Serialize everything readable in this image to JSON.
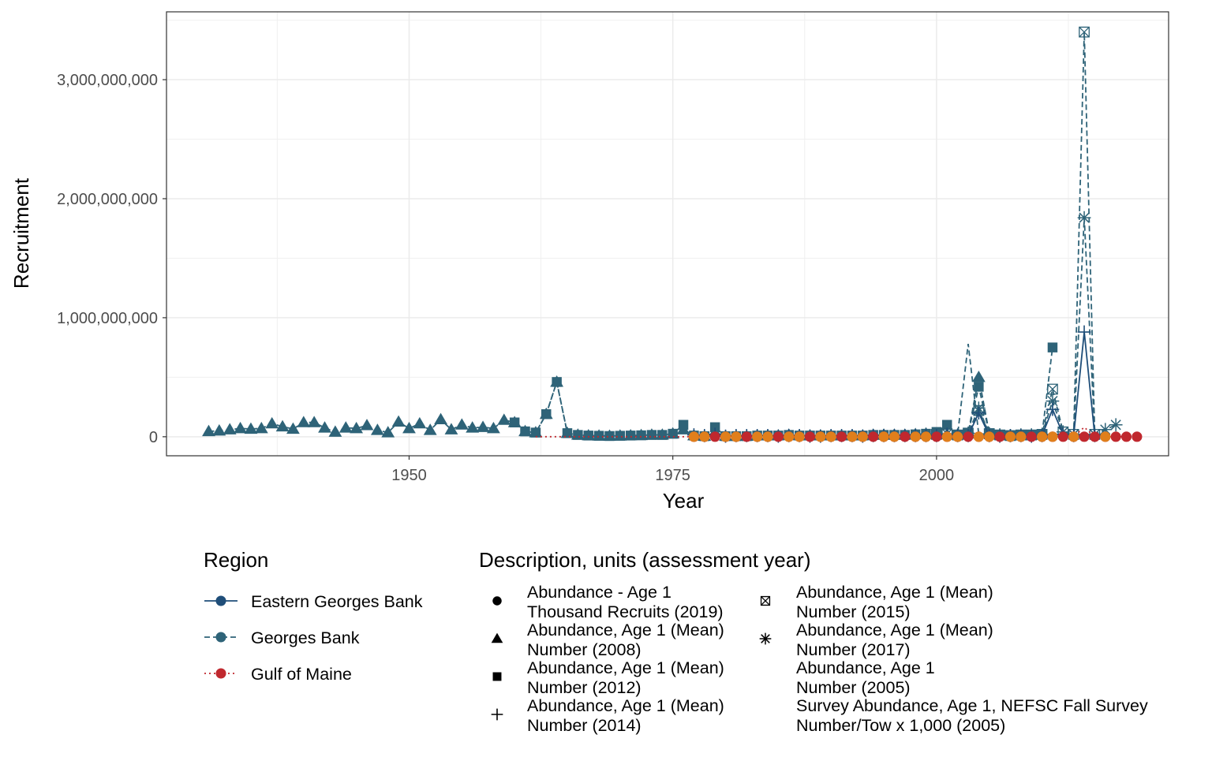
{
  "chart_data": {
    "type": "line",
    "xlabel": "Year",
    "ylabel": "Recruitment",
    "xlim": [
      1927,
      2022
    ],
    "ylim": [
      -160000000,
      3570000000
    ],
    "x_ticks": [
      1950,
      1975,
      2000
    ],
    "x_tick_labels": [
      "1950",
      "1975",
      "2000"
    ],
    "y_ticks": [
      0,
      1000000000,
      2000000000,
      3000000000
    ],
    "y_tick_labels": [
      "0",
      "1,000,000,000",
      "2,000,000,000",
      "3,000,000,000"
    ],
    "grid": true,
    "legend_position": "bottom",
    "legend_region": {
      "title": "Region",
      "items": [
        {
          "label": "Eastern Georges Bank",
          "color": "#1f4e79",
          "linetype": "solid"
        },
        {
          "label": "Georges Bank",
          "color": "#2e6378",
          "linetype": "dashed"
        },
        {
          "label": "Gulf of Maine",
          "color": "#c0282e",
          "linetype": "dotted"
        }
      ]
    },
    "legend_description": {
      "title": "Description, units (assessment year)",
      "items": [
        {
          "line1": "Abundance - Age 1",
          "line2": "Thousand Recruits (2019)",
          "shape": "circle"
        },
        {
          "line1": "Abundance, Age 1 (Mean)",
          "line2": "Number (2008)",
          "shape": "triangle"
        },
        {
          "line1": "Abundance, Age 1 (Mean)",
          "line2": "Number (2012)",
          "shape": "square"
        },
        {
          "line1": "Abundance, Age 1 (Mean)",
          "line2": "Number (2014)",
          "shape": "plus"
        },
        {
          "line1": "Abundance, Age 1 (Mean)",
          "line2": "Number (2015)",
          "shape": "boxcross"
        },
        {
          "line1": "Abundance, Age 1 (Mean)",
          "line2": "Number (2017)",
          "shape": "asterisk"
        },
        {
          "line1": "Abundance, Age 1",
          "line2": "Number (2005)",
          "shape": "none"
        },
        {
          "line1": "Survey Abundance, Age 1, NEFSC Fall Survey",
          "line2": "Number/Tow x 1,000 (2005)",
          "shape": "none"
        }
      ]
    },
    "series": [
      {
        "region": "Georges Bank",
        "description": "Abundance, Age 1 (Mean) Number (2008)",
        "color": "#2e6378",
        "linetype": "dashed",
        "shape": "triangle",
        "x": [
          1931,
          1932,
          1933,
          1934,
          1935,
          1936,
          1937,
          1938,
          1939,
          1940,
          1941,
          1942,
          1943,
          1944,
          1945,
          1946,
          1947,
          1948,
          1949,
          1950,
          1951,
          1952,
          1953,
          1954,
          1955,
          1956,
          1957,
          1958,
          1959,
          1960,
          1961,
          1962,
          1963,
          1964,
          1965,
          1966,
          1967,
          1968,
          1969,
          1970,
          1971,
          1972,
          1973,
          1974,
          1975,
          1976,
          1977,
          1978,
          1979,
          1980,
          1981,
          1982,
          1983,
          1984,
          1985,
          1986,
          1987,
          1988,
          1989,
          1990,
          1991,
          1992,
          1993,
          1994,
          1995,
          1996,
          1997,
          1998,
          1999,
          2000,
          2001,
          2002,
          2003,
          2004,
          2005,
          2006
        ],
        "y": [
          45000000,
          50000000,
          60000000,
          70000000,
          65000000,
          70000000,
          110000000,
          85000000,
          65000000,
          120000000,
          120000000,
          75000000,
          40000000,
          75000000,
          70000000,
          95000000,
          55000000,
          35000000,
          125000000,
          70000000,
          110000000,
          55000000,
          145000000,
          60000000,
          100000000,
          75000000,
          80000000,
          70000000,
          140000000,
          120000000,
          45000000,
          35000000,
          190000000,
          460000000,
          30000000,
          15000000,
          10000000,
          8000000,
          6000000,
          8000000,
          10000000,
          12000000,
          15000000,
          15000000,
          25000000,
          60000000,
          10000000,
          5000000,
          40000000,
          5000000,
          5000000,
          5000000,
          10000000,
          10000000,
          10000000,
          15000000,
          10000000,
          10000000,
          10000000,
          10000000,
          10000000,
          10000000,
          10000000,
          15000000,
          15000000,
          15000000,
          15000000,
          20000000,
          25000000,
          20000000,
          20000000,
          15000000,
          30000000,
          500000000,
          30000000,
          15000000
        ]
      },
      {
        "region": "Georges Bank",
        "description": "Abundance, Age 1 (Mean) Number (2012)",
        "color": "#2e6378",
        "linetype": "dashed",
        "shape": "square",
        "x": [
          1960,
          1961,
          1962,
          1963,
          1964,
          1965,
          1966,
          1967,
          1968,
          1969,
          1970,
          1971,
          1972,
          1973,
          1974,
          1975,
          1976,
          1977,
          1978,
          1979,
          1980,
          1981,
          1982,
          1983,
          1984,
          1985,
          1986,
          1987,
          1988,
          1989,
          1990,
          1991,
          1992,
          1993,
          1994,
          1995,
          1996,
          1997,
          1998,
          1999,
          2000,
          2001,
          2002,
          2003,
          2004,
          2005,
          2006,
          2007,
          2008,
          2009,
          2010,
          2011
        ],
        "y": [
          120000000,
          45000000,
          35000000,
          190000000,
          460000000,
          30000000,
          15000000,
          10000000,
          8000000,
          6000000,
          8000000,
          10000000,
          12000000,
          15000000,
          15000000,
          25000000,
          100000000,
          10000000,
          5000000,
          80000000,
          5000000,
          5000000,
          5000000,
          10000000,
          10000000,
          10000000,
          15000000,
          10000000,
          10000000,
          10000000,
          10000000,
          10000000,
          10000000,
          10000000,
          15000000,
          15000000,
          15000000,
          15000000,
          20000000,
          25000000,
          40000000,
          100000000,
          15000000,
          30000000,
          420000000,
          30000000,
          15000000,
          10000000,
          15000000,
          15000000,
          20000000,
          750000000
        ]
      },
      {
        "region": "Georges Bank",
        "description": "Abundance, Age 1 Number (2005)",
        "color": "#2e6378",
        "linetype": "dashed",
        "shape": "none",
        "x": [
          1999,
          2000,
          2001,
          2002,
          2003,
          2004,
          2005
        ],
        "y": [
          20000000,
          25000000,
          30000000,
          15000000,
          780000000,
          20000000,
          15000000
        ]
      },
      {
        "region": "Georges Bank",
        "description": "Abundance, Age 1 (Mean) Number (2015)",
        "color": "#2e6378",
        "linetype": "dashed",
        "shape": "boxcross",
        "x": [
          2000,
          2001,
          2002,
          2003,
          2004,
          2005,
          2006,
          2007,
          2008,
          2009,
          2010,
          2011,
          2012,
          2013,
          2014,
          2015
        ],
        "y": [
          20000000,
          25000000,
          15000000,
          30000000,
          220000000,
          25000000,
          15000000,
          10000000,
          15000000,
          15000000,
          20000000,
          400000000,
          40000000,
          20000000,
          3400000000,
          20000000
        ]
      },
      {
        "region": "Georges Bank",
        "description": "Abundance, Age 1 (Mean) Number (2017)",
        "color": "#2e6378",
        "linetype": "dashed",
        "shape": "asterisk",
        "x": [
          2000,
          2001,
          2002,
          2003,
          2004,
          2005,
          2006,
          2007,
          2008,
          2009,
          2010,
          2011,
          2012,
          2013,
          2014,
          2015,
          2016,
          2017
        ],
        "y": [
          20000000,
          25000000,
          15000000,
          30000000,
          240000000,
          25000000,
          15000000,
          10000000,
          15000000,
          15000000,
          20000000,
          300000000,
          40000000,
          20000000,
          1840000000,
          20000000,
          60000000,
          100000000
        ]
      },
      {
        "region": "Eastern Georges Bank",
        "description": "Abundance, Age 1 (Mean) Number (2014)",
        "color": "#1f4e79",
        "linetype": "solid",
        "shape": "plus",
        "x": [
          1977,
          1978,
          1979,
          1980,
          1981,
          1982,
          1983,
          1984,
          1985,
          1986,
          1987,
          1988,
          1989,
          1990,
          1991,
          1992,
          1993,
          1994,
          1995,
          1996,
          1997,
          1998,
          1999,
          2000,
          2001,
          2002,
          2003,
          2004,
          2005,
          2006,
          2007,
          2008,
          2009,
          2010,
          2011,
          2012,
          2013,
          2014,
          2015
        ],
        "y": [
          15000000,
          10000000,
          20000000,
          5000000,
          10000000,
          10000000,
          10000000,
          10000000,
          5000000,
          10000000,
          10000000,
          5000000,
          5000000,
          10000000,
          10000000,
          10000000,
          5000000,
          10000000,
          10000000,
          10000000,
          10000000,
          10000000,
          10000000,
          10000000,
          20000000,
          10000000,
          10000000,
          200000000,
          10000000,
          5000000,
          10000000,
          10000000,
          5000000,
          10000000,
          230000000,
          20000000,
          10000000,
          880000000,
          10000000
        ]
      },
      {
        "region": "Gulf of Maine",
        "description": "Survey Abundance, Age 1, NEFSC Fall Survey Number/Tow x 1,000 (2005)",
        "color": "#c0282e",
        "linetype": "dotted",
        "shape": "none",
        "x": [
          1962,
          1963,
          1964,
          1965,
          1966,
          1967,
          1968,
          1969,
          1970,
          1971,
          1972,
          1973,
          1974,
          1975,
          1976,
          1977,
          1978,
          1979,
          1980,
          1981,
          1982,
          1983,
          1984,
          1985,
          1986,
          1987,
          1988,
          1989,
          1990,
          1991,
          1992,
          1993,
          1994,
          1995,
          1996,
          1997,
          1998,
          1999,
          2000,
          2001,
          2002,
          2003,
          2004,
          2005,
          2006,
          2007,
          2008,
          2009,
          2010,
          2011,
          2012,
          2013,
          2014,
          2015
        ],
        "y": [
          0,
          0,
          0,
          0,
          0,
          0,
          0,
          0,
          0,
          0,
          0,
          0,
          0,
          0,
          0,
          0,
          0,
          0,
          0,
          0,
          0,
          0,
          0,
          0,
          0,
          0,
          0,
          0,
          0,
          0,
          0,
          0,
          0,
          0,
          0,
          0,
          0,
          0,
          0,
          0,
          0,
          0,
          0,
          0,
          0,
          0,
          0,
          0,
          0,
          0,
          0,
          0,
          80000000,
          0
        ]
      },
      {
        "region": "Gulf of Maine",
        "description": "Abundance - Age 1 Thousand Recruits (2019)",
        "color": "#c0282e",
        "linetype": "dotted",
        "shape": "circle",
        "x": [
          1977,
          1978,
          1979,
          1980,
          1981,
          1982,
          1983,
          1984,
          1985,
          1986,
          1987,
          1988,
          1989,
          1990,
          1991,
          1992,
          1993,
          1994,
          1995,
          1996,
          1997,
          1998,
          1999,
          2000,
          2001,
          2002,
          2003,
          2004,
          2005,
          2006,
          2007,
          2008,
          2009,
          2010,
          2011,
          2012,
          2013,
          2014,
          2015,
          2016,
          2017,
          2018,
          2019
        ],
        "y": [
          0,
          0,
          0,
          0,
          0,
          0,
          0,
          0,
          0,
          0,
          0,
          0,
          0,
          0,
          0,
          0,
          0,
          0,
          0,
          0,
          0,
          0,
          0,
          0,
          0,
          0,
          0,
          0,
          0,
          0,
          0,
          0,
          0,
          0,
          0,
          0,
          0,
          0,
          0,
          0,
          0,
          0,
          0
        ]
      },
      {
        "region": "Gulf of Maine",
        "description": "Abundance - Age 1 Thousand Recruits (2019)",
        "color": "#e07f1c",
        "linetype": "none",
        "shape": "circle",
        "x": [
          1977,
          1978,
          1980,
          1981,
          1983,
          1984,
          1986,
          1987,
          1989,
          1990,
          1992,
          1993,
          1995,
          1996,
          1998,
          1999,
          2001,
          2002,
          2004,
          2005,
          2007,
          2008,
          2010,
          2011,
          2013,
          2016
        ],
        "y": [
          0,
          0,
          0,
          0,
          0,
          0,
          0,
          0,
          0,
          0,
          0,
          0,
          0,
          0,
          0,
          0,
          0,
          0,
          0,
          0,
          0,
          0,
          0,
          0,
          0,
          0
        ]
      }
    ]
  }
}
